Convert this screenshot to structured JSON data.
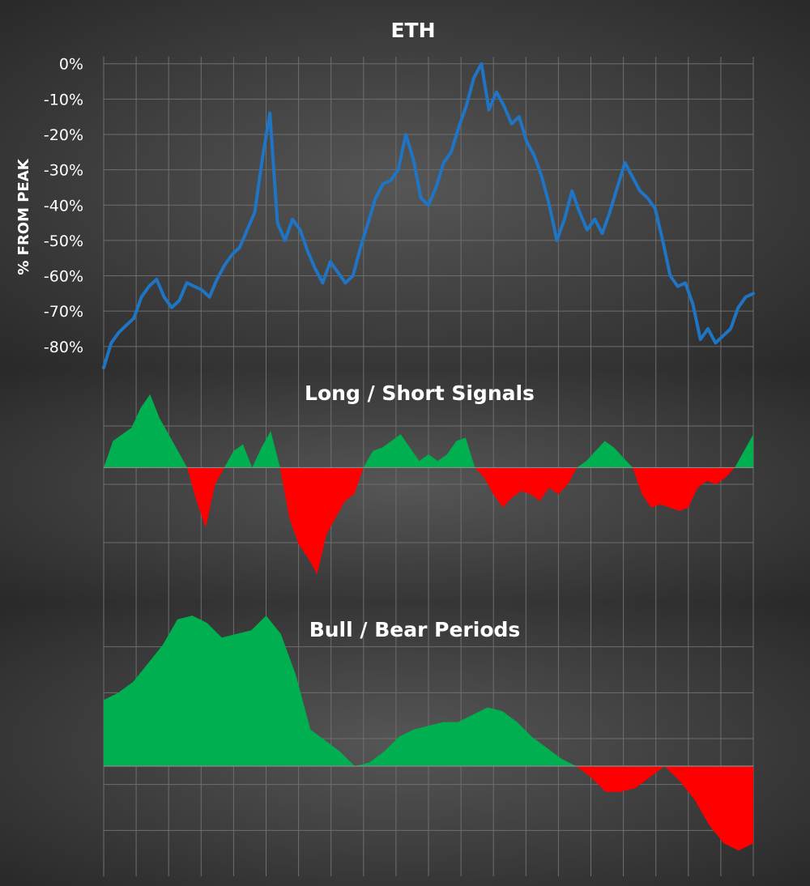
{
  "colors": {
    "line": "#1f74c4",
    "positive": "#00b050",
    "negative": "#ff0000",
    "text": "#ffffff",
    "grid": "#6e6e6e"
  },
  "chart_data": [
    {
      "type": "line",
      "title": "ETH",
      "ylabel": "% FROM PEAK",
      "xlabel": "",
      "ylim": [
        -86,
        2
      ],
      "y_ticks": [
        0,
        -10,
        -20,
        -30,
        -40,
        -50,
        -60,
        -70,
        -80
      ],
      "y_tick_labels": [
        "0%",
        "-10%",
        "-20%",
        "-30%",
        "-40%",
        "-50%",
        "-60%",
        "-70%",
        "-80%"
      ],
      "grid": true,
      "x_divisions": 20,
      "series": [
        {
          "values": [
            -86,
            -79,
            -76,
            -74,
            -72,
            -66,
            -63,
            -61,
            -66,
            -69,
            -67,
            -62,
            -63,
            -64,
            -66,
            -61,
            -57,
            -54,
            -52,
            -47,
            -42,
            -27,
            -14,
            -45,
            -50,
            -44,
            -47,
            -53,
            -58,
            -62,
            -56,
            -59,
            -62,
            -60,
            -52,
            -45,
            -38,
            -34,
            -33,
            -30,
            -20,
            -27,
            -38,
            -40,
            -35,
            -28,
            -25,
            -18,
            -12,
            -4,
            0,
            -13,
            -8,
            -12,
            -17,
            -15,
            -22,
            -26,
            -32,
            -40,
            -50,
            -44,
            -36,
            -42,
            -47,
            -44,
            -48,
            -42,
            -35,
            -28,
            -32,
            -36,
            -38,
            -41,
            -50,
            -60,
            -63,
            -62,
            -68,
            -78,
            -75,
            -79,
            -77,
            -75,
            -69,
            -66,
            -65
          ]
        }
      ]
    },
    {
      "type": "area",
      "title": "Long / Short Signals",
      "ylim": [
        -4,
        3
      ],
      "grid": true,
      "x_divisions": 20,
      "series": [
        {
          "values": [
            0,
            0.8,
            1.0,
            1.2,
            1.8,
            2.2,
            1.5,
            1.0,
            0.5,
            0,
            -1.0,
            -1.8,
            -0.5,
            0,
            0.5,
            0.7,
            0,
            0.6,
            1.1,
            0,
            -1.5,
            -2.3,
            -2.7,
            -3.2,
            -2.0,
            -1.5,
            -1.0,
            -0.8,
            0,
            0.5,
            0.6,
            0.8,
            1.0,
            0.6,
            0.2,
            0.4,
            0.2,
            0.4,
            0.8,
            0.9,
            0,
            -0.3,
            -0.8,
            -1.2,
            -0.9,
            -0.7,
            -0.8,
            -1.0,
            -0.6,
            -0.8,
            -0.5,
            0,
            0.2,
            0.5,
            0.8,
            0.6,
            0.3,
            0,
            -0.8,
            -1.2,
            -1.1,
            -1.2,
            -1.3,
            -1.2,
            -0.6,
            -0.4,
            -0.5,
            -0.3,
            0,
            0.5,
            1.0
          ]
        }
      ]
    },
    {
      "type": "area",
      "title": "Bull / Bear Periods",
      "ylim": [
        -3,
        4.5
      ],
      "grid": true,
      "x_divisions": 20,
      "series": [
        {
          "values": [
            1.8,
            2.0,
            2.3,
            2.8,
            3.3,
            4.0,
            4.1,
            3.9,
            3.5,
            3.6,
            3.7,
            4.1,
            3.6,
            2.5,
            1.0,
            0.7,
            0.4,
            0.0,
            0.1,
            0.4,
            0.8,
            1.0,
            1.1,
            1.2,
            1.2,
            1.4,
            1.6,
            1.5,
            1.2,
            0.8,
            0.5,
            0.2,
            0.0,
            -0.3,
            -0.7,
            -0.7,
            -0.6,
            -0.3,
            0.0,
            -0.4,
            -0.9,
            -1.6,
            -2.1,
            -2.3,
            -2.1
          ]
        }
      ]
    }
  ]
}
